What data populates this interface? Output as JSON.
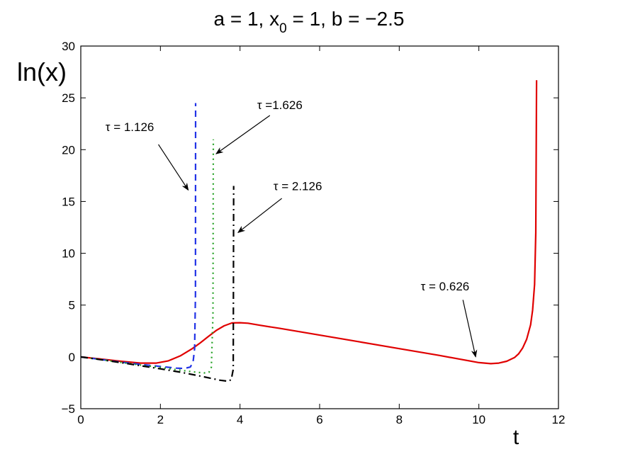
{
  "chart_data": {
    "type": "line",
    "title": {
      "text_before": "a = 1, x",
      "subscript": "0",
      "text_after": " = 1, b = −2.5"
    },
    "xlabel": "t",
    "ylabel": "ln(x)",
    "xlim": [
      0,
      12
    ],
    "ylim": [
      -5,
      30
    ],
    "xticks": [
      0,
      2,
      4,
      6,
      8,
      10,
      12
    ],
    "xtick_labels": [
      "0",
      "2",
      "4",
      "6",
      "8",
      "10",
      "12"
    ],
    "yticks": [
      -5,
      0,
      5,
      10,
      15,
      20,
      25,
      30
    ],
    "ytick_labels": [
      "−5",
      "0",
      "5",
      "10",
      "15",
      "20",
      "25",
      "30"
    ],
    "grid": false,
    "series": [
      {
        "name": "τ = 0.626",
        "color": "#e00000",
        "dash": "solid",
        "x": [
          0,
          0.5,
          1.0,
          1.5,
          1.9,
          2.2,
          2.5,
          2.8,
          3.0,
          3.2,
          3.4,
          3.6,
          3.8,
          4.0,
          4.2,
          4.5,
          5,
          6,
          7,
          8,
          9,
          9.5,
          10.0,
          10.3,
          10.5,
          10.7,
          10.9,
          11.0,
          11.1,
          11.2,
          11.3,
          11.35,
          11.4,
          11.43,
          11.45
        ],
        "y": [
          0,
          -0.2,
          -0.42,
          -0.6,
          -0.6,
          -0.38,
          0.1,
          0.8,
          1.35,
          1.95,
          2.55,
          3.0,
          3.28,
          3.3,
          3.25,
          3.05,
          2.75,
          2.1,
          1.45,
          0.8,
          0.15,
          -0.2,
          -0.55,
          -0.65,
          -0.6,
          -0.42,
          -0.05,
          0.3,
          0.85,
          1.7,
          3.1,
          4.5,
          7.0,
          12.0,
          26.7
        ]
      },
      {
        "name": "τ = 1.126",
        "color": "#2233e6",
        "dash": "dashed",
        "x": [
          0,
          0.5,
          1.0,
          1.5,
          2.0,
          2.4,
          2.6,
          2.75,
          2.82,
          2.86,
          2.88,
          2.885
        ],
        "y": [
          0,
          -0.25,
          -0.5,
          -0.72,
          -0.92,
          -1.08,
          -1.12,
          -0.98,
          -0.5,
          0.8,
          6.0,
          24.5
        ]
      },
      {
        "name": "τ =1.626",
        "color": "#22a022",
        "dash": "dotted",
        "x": [
          0,
          0.5,
          1.0,
          1.5,
          2.0,
          2.5,
          2.9,
          3.1,
          3.22,
          3.28,
          3.32,
          3.33
        ],
        "y": [
          0,
          -0.25,
          -0.52,
          -0.78,
          -1.02,
          -1.28,
          -1.48,
          -1.55,
          -1.48,
          -1.0,
          4.0,
          21.0
        ]
      },
      {
        "name": "τ = 2.126",
        "color": "#000000",
        "dash": "dashdot",
        "x": [
          0,
          0.5,
          1.0,
          1.5,
          2.0,
          2.5,
          3.0,
          3.5,
          3.7,
          3.78,
          3.83,
          3.84
        ],
        "y": [
          0,
          -0.27,
          -0.55,
          -0.85,
          -1.15,
          -1.47,
          -1.85,
          -2.25,
          -2.35,
          -2.2,
          -1.2,
          16.5
        ]
      }
    ],
    "annotations": [
      {
        "text": "τ = 1.126",
        "text_x": 1.23,
        "text_y": 21.8,
        "arrow_from_x": 1.95,
        "arrow_from_y": 20.5,
        "arrow_to_x": 2.7,
        "arrow_to_y": 16.1
      },
      {
        "text": "τ =1.626",
        "text_x": 5.0,
        "text_y": 23.9,
        "arrow_from_x": 4.75,
        "arrow_from_y": 23.3,
        "arrow_to_x": 3.4,
        "arrow_to_y": 19.6
      },
      {
        "text": "τ = 2.126",
        "text_x": 5.45,
        "text_y": 16.1,
        "arrow_from_x": 5.05,
        "arrow_from_y": 15.3,
        "arrow_to_x": 3.95,
        "arrow_to_y": 12.0
      },
      {
        "text": "τ = 0.626",
        "text_x": 9.15,
        "text_y": 6.4,
        "arrow_from_x": 9.6,
        "arrow_from_y": 5.5,
        "arrow_to_x": 9.92,
        "arrow_to_y": 0.0
      }
    ]
  }
}
